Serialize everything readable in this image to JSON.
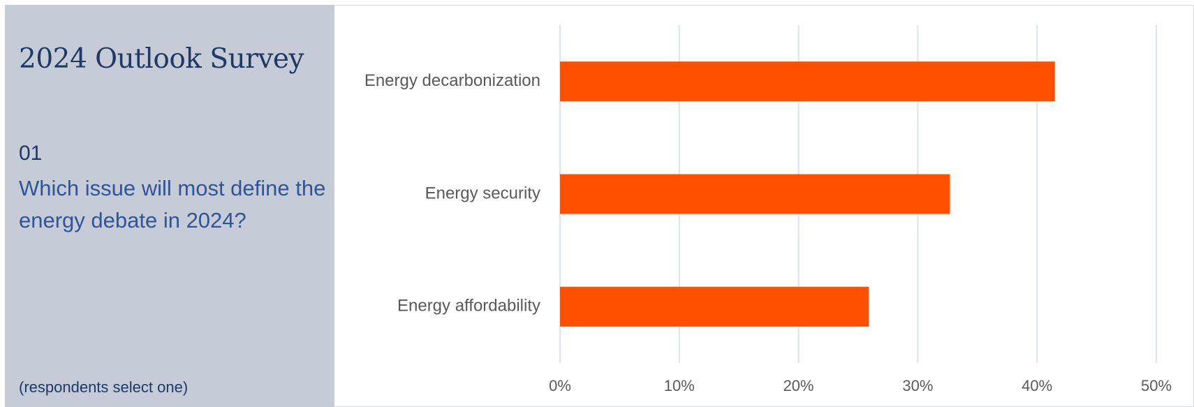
{
  "panel": {
    "title": "2024 Outlook Survey",
    "question_number": "01",
    "question": "Which issue will most define the energy debate in 2024?",
    "note": "(respondents select one)"
  },
  "colors": {
    "bar": "#ff5000",
    "gridline": "#dce3ec",
    "panel_background": "#c5ccd7"
  },
  "chart_data": {
    "type": "bar",
    "orientation": "horizontal",
    "categories": [
      "Energy decarbonization",
      "Energy security",
      "Energy affordability"
    ],
    "values": [
      41.5,
      32.7,
      25.9
    ],
    "xlim": [
      0,
      50
    ],
    "xticks": [
      0,
      10,
      20,
      30,
      40,
      50
    ],
    "tick_labels": [
      "0%",
      "10%",
      "20%",
      "30%",
      "40%",
      "50%"
    ],
    "grid": "vertical",
    "legend": "none"
  }
}
